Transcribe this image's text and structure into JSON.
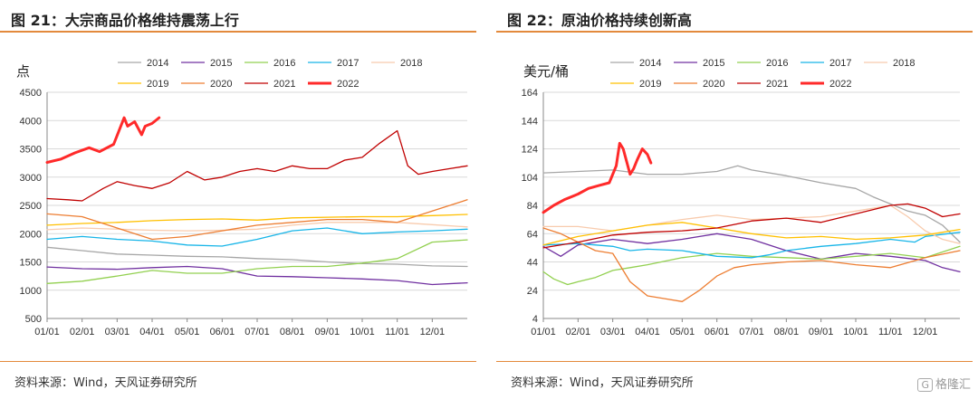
{
  "watermark": {
    "icon": "gelonghui-logo-icon",
    "label": "格隆汇"
  },
  "charts": [
    {
      "title": "图 21：大宗商品价格维持震荡上行",
      "source": "资料来源：Wind，天风证券研究所",
      "chart_data": {
        "type": "line",
        "ylabel": "点",
        "ylim": [
          500,
          4500
        ],
        "yticks": [
          500,
          1000,
          1500,
          2000,
          2500,
          3000,
          3500,
          4000,
          4500
        ],
        "xticklabels": [
          "01/01",
          "02/01",
          "03/01",
          "04/01",
          "05/01",
          "06/01",
          "07/01",
          "08/01",
          "09/01",
          "10/01",
          "11/01",
          "12/01"
        ],
        "xlim": [
          0,
          12
        ],
        "grid": "horizontal",
        "legend_position": "top",
        "series": [
          {
            "name": "2014",
            "color": "#a6a6a6",
            "width": 1.3,
            "x": [
              0,
              1,
              2,
              3,
              4,
              5,
              6,
              7,
              8,
              9,
              10,
              11,
              12
            ],
            "y": [
              1760,
              1700,
              1640,
              1620,
              1600,
              1590,
              1560,
              1540,
              1500,
              1470,
              1460,
              1430,
              1420
            ]
          },
          {
            "name": "2015",
            "color": "#7030a0",
            "width": 1.3,
            "x": [
              0,
              1,
              2,
              3,
              4,
              5,
              6,
              7,
              8,
              9,
              10,
              11,
              12
            ],
            "y": [
              1410,
              1380,
              1370,
              1400,
              1420,
              1380,
              1250,
              1240,
              1220,
              1200,
              1170,
              1100,
              1130
            ]
          },
          {
            "name": "2016",
            "color": "#92d050",
            "width": 1.3,
            "x": [
              0,
              1,
              2,
              3,
              4,
              5,
              6,
              7,
              8,
              9,
              10,
              11,
              12
            ],
            "y": [
              1120,
              1160,
              1250,
              1350,
              1300,
              1300,
              1380,
              1420,
              1420,
              1480,
              1560,
              1850,
              1890
            ]
          },
          {
            "name": "2017",
            "color": "#17b5e8",
            "width": 1.3,
            "x": [
              0,
              1,
              2,
              3,
              4,
              5,
              6,
              7,
              8,
              9,
              10,
              11,
              12
            ],
            "y": [
              1900,
              1950,
              1900,
              1870,
              1800,
              1780,
              1900,
              2050,
              2100,
              2000,
              2030,
              2050,
              2080
            ]
          },
          {
            "name": "2018",
            "color": "#f8cbad",
            "width": 1.3,
            "x": [
              0,
              1,
              2,
              3,
              4,
              5,
              6,
              7,
              8,
              9,
              10,
              11,
              12
            ],
            "y": [
              2070,
              2100,
              2080,
              2060,
              2050,
              2060,
              2080,
              2150,
              2200,
              2200,
              2200,
              2160,
              2120
            ]
          },
          {
            "name": "2019",
            "color": "#ffc000",
            "width": 1.3,
            "x": [
              0,
              1,
              2,
              3,
              4,
              5,
              6,
              7,
              8,
              9,
              10,
              11,
              12
            ],
            "y": [
              2150,
              2180,
              2200,
              2230,
              2250,
              2260,
              2240,
              2280,
              2290,
              2300,
              2300,
              2320,
              2340
            ]
          },
          {
            "name": "2020",
            "color": "#ed7d31",
            "width": 1.3,
            "x": [
              0,
              1,
              2,
              3,
              4,
              5,
              6,
              7,
              8,
              9,
              10,
              11,
              12
            ],
            "y": [
              2350,
              2300,
              2100,
              1900,
              1950,
              2050,
              2150,
              2200,
              2250,
              2250,
              2200,
              2400,
              2600
            ]
          },
          {
            "name": "2021",
            "color": "#c00000",
            "width": 1.3,
            "x": [
              0,
              0.6,
              1,
              1.6,
              2,
              2.5,
              3,
              3.5,
              4,
              4.5,
              5,
              5.5,
              6,
              6.5,
              7,
              7.5,
              8,
              8.5,
              9,
              9.5,
              10,
              10.3,
              10.6,
              11,
              11.5,
              12
            ],
            "y": [
              2620,
              2600,
              2580,
              2800,
              2920,
              2850,
              2800,
              2900,
              3100,
              2950,
              3000,
              3100,
              3150,
              3100,
              3200,
              3150,
              3150,
              3300,
              3350,
              3600,
              3820,
              3200,
              3050,
              3100,
              3150,
              3200
            ]
          },
          {
            "name": "2022",
            "color": "#ff2a2a",
            "width": 3,
            "x": [
              0,
              0.4,
              0.8,
              1.2,
              1.5,
              1.9,
              2.2,
              2.3,
              2.5,
              2.7,
              2.8,
              3.0,
              3.2
            ],
            "y": [
              3260,
              3320,
              3430,
              3520,
              3450,
              3580,
              4050,
              3900,
              3980,
              3750,
              3900,
              3950,
              4050
            ]
          }
        ]
      }
    },
    {
      "title": "图 22：原油价格持续创新高",
      "source": "资料来源：Wind，天风证券研究所",
      "chart_data": {
        "type": "line",
        "ylabel": "美元/桶",
        "ylim": [
          4,
          164
        ],
        "yticks": [
          4,
          24,
          44,
          64,
          84,
          104,
          124,
          144,
          164
        ],
        "xticklabels": [
          "01/01",
          "02/01",
          "03/01",
          "04/01",
          "05/01",
          "06/01",
          "07/01",
          "08/01",
          "09/01",
          "10/01",
          "11/01",
          "12/01"
        ],
        "xlim": [
          0,
          12
        ],
        "grid": "horizontal",
        "legend_position": "top",
        "series": [
          {
            "name": "2014",
            "color": "#a6a6a6",
            "width": 1.3,
            "x": [
              0,
              1,
              2,
              3,
              4,
              5,
              5.6,
              6,
              7,
              8,
              9,
              9.5,
              10,
              10.5,
              11,
              11.5,
              12
            ],
            "y": [
              107,
              108,
              109,
              106,
              106,
              108,
              112,
              109,
              105,
              100,
              96,
              90,
              85,
              80,
              77,
              70,
              58
            ]
          },
          {
            "name": "2015",
            "color": "#7030a0",
            "width": 1.3,
            "x": [
              0,
              0.5,
              1,
              2,
              3,
              4,
              4.5,
              5,
              5.5,
              6,
              7,
              8,
              8.5,
              9,
              10,
              11,
              11.5,
              12
            ],
            "y": [
              55,
              48,
              56,
              60,
              57,
              60,
              62,
              64,
              62,
              60,
              52,
              46,
              48,
              50,
              48,
              45,
              40,
              37
            ]
          },
          {
            "name": "2016",
            "color": "#92d050",
            "width": 1.3,
            "x": [
              0,
              0.3,
              0.7,
              1,
              1.5,
              2,
              2.5,
              3,
              4,
              5,
              6,
              7,
              8,
              9,
              10,
              11,
              12
            ],
            "y": [
              37,
              32,
              28,
              30,
              33,
              38,
              40,
              42,
              47,
              50,
              48,
              47,
              46,
              48,
              50,
              47,
              55
            ]
          },
          {
            "name": "2017",
            "color": "#17b5e8",
            "width": 1.3,
            "x": [
              0,
              1,
              2,
              2.5,
              3,
              4,
              5,
              6,
              6.5,
              7,
              8,
              9,
              10,
              10.7,
              11,
              12
            ],
            "y": [
              56,
              57,
              55,
              52,
              53,
              52,
              48,
              47,
              49,
              52,
              55,
              57,
              60,
              58,
              62,
              65
            ]
          },
          {
            "name": "2018",
            "color": "#f8cbad",
            "width": 1.3,
            "x": [
              0,
              1,
              2,
              3,
              4,
              5,
              6,
              7,
              8,
              9,
              10,
              10.5,
              11,
              11.5,
              12
            ],
            "y": [
              69,
              69,
              66,
              70,
              74,
              77,
              74,
              75,
              76,
              80,
              84,
              76,
              66,
              60,
              57
            ]
          },
          {
            "name": "2019",
            "color": "#ffc000",
            "width": 1.3,
            "x": [
              0,
              1,
              2,
              3,
              4,
              5,
              6,
              7,
              8,
              9,
              10,
              11,
              12
            ],
            "y": [
              56,
              62,
              66,
              70,
              72,
              68,
              64,
              61,
              62,
              60,
              61,
              63,
              67
            ]
          },
          {
            "name": "2020",
            "color": "#ed7d31",
            "width": 1.3,
            "x": [
              0,
              0.5,
              1,
              1.5,
              2,
              2.5,
              3,
              3.5,
              4,
              4.5,
              5,
              5.5,
              6,
              7,
              8,
              9,
              10,
              11,
              12
            ],
            "y": [
              68,
              64,
              58,
              52,
              50,
              30,
              20,
              18,
              16,
              24,
              34,
              40,
              42,
              44,
              45,
              42,
              40,
              47,
              52
            ]
          },
          {
            "name": "2021",
            "color": "#c00000",
            "width": 1.3,
            "x": [
              0,
              1,
              2,
              3,
              4,
              5,
              6,
              7,
              8,
              9,
              10,
              10.5,
              11,
              11.5,
              12
            ],
            "y": [
              54,
              58,
              63,
              65,
              66,
              68,
              73,
              75,
              72,
              78,
              84,
              85,
              82,
              76,
              78
            ]
          },
          {
            "name": "2022",
            "color": "#ff2a2a",
            "width": 3,
            "x": [
              0,
              0.3,
              0.6,
              1,
              1.3,
              1.6,
              1.9,
              2.1,
              2.2,
              2.3,
              2.5,
              2.6,
              2.7,
              2.85,
              3.0,
              3.1
            ],
            "y": [
              79,
              84,
              88,
              92,
              96,
              98,
              100,
              112,
              128,
              124,
              106,
              110,
              116,
              124,
              120,
              114
            ]
          }
        ]
      }
    }
  ]
}
